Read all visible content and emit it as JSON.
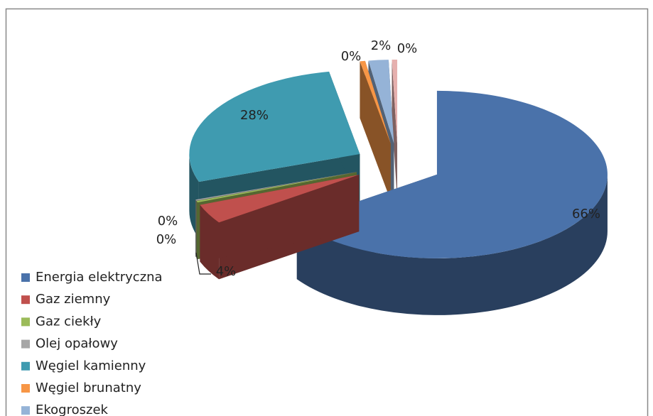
{
  "chart_data": {
    "type": "pie",
    "categories": [
      "Energia elektryczna",
      "Gaz ziemny",
      "Gaz ciekły",
      "Olej opałowy",
      "Węgiel kamienny",
      "Węgiel brunatny",
      "Ekogroszek",
      null
    ],
    "values": [
      65.6,
      3.8,
      0.3,
      0.2,
      27.6,
      0.5,
      1.9,
      0.5
    ],
    "value_labels": [
      "66%",
      "4%",
      "0%",
      "0%",
      "28%",
      "0%",
      "2%",
      "0%"
    ],
    "colors": [
      "#4a72aa",
      "#c0504d",
      "#9bbb59",
      "#a6a6a6",
      "#3f9bb0",
      "#f79646",
      "#95b3d7",
      "#e6b0ae"
    ]
  }
}
